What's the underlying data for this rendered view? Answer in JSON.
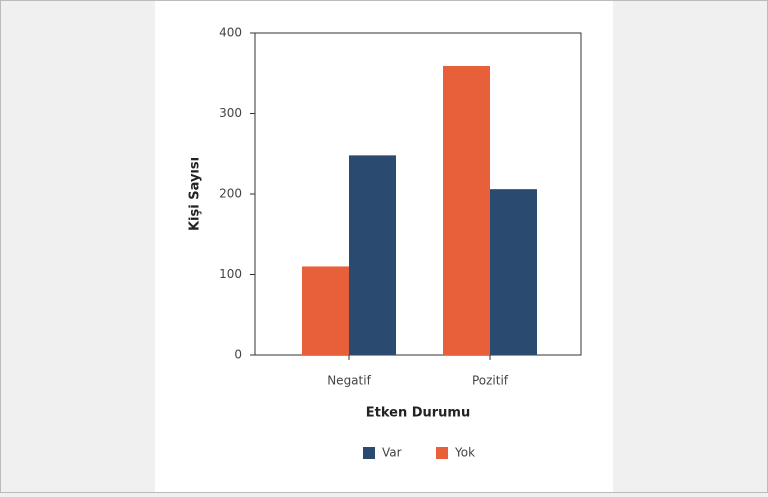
{
  "chart_data": {
    "type": "bar",
    "x_label": "Etken Durumu",
    "y_label": "Kişi Sayısı",
    "categories": [
      "Negatif",
      "Pozitif"
    ],
    "series": [
      {
        "name": "Yok",
        "color": "#e8603a",
        "values": [
          110,
          359
        ]
      },
      {
        "name": "Var",
        "color": "#2b4a6f",
        "values": [
          248,
          206
        ]
      }
    ],
    "ylim": [
      0,
      400
    ],
    "yticks": [
      0,
      100,
      200,
      300,
      400
    ],
    "grid": false
  }
}
